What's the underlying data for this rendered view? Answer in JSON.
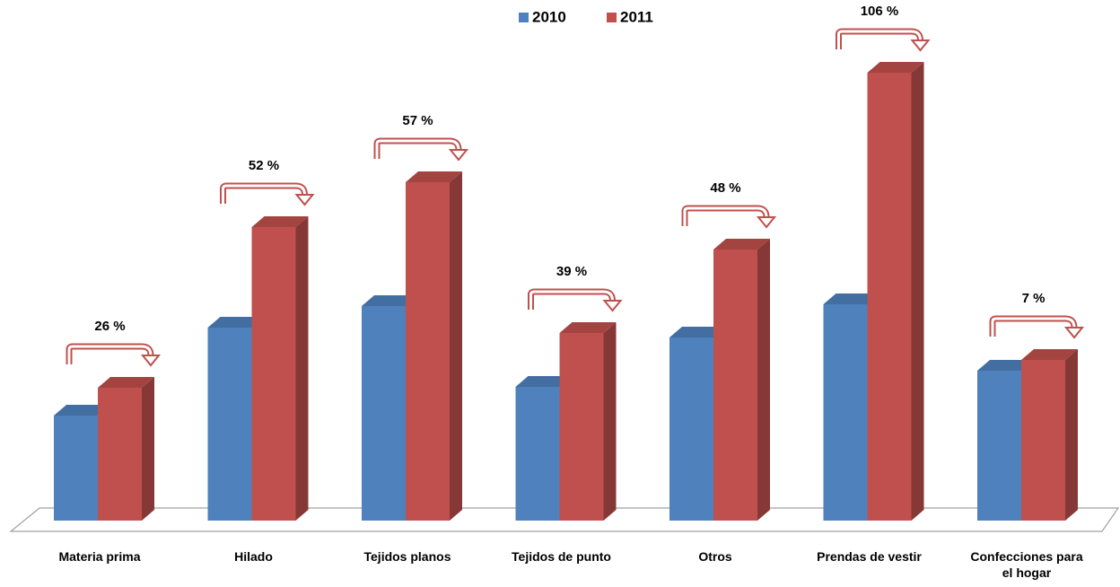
{
  "chart_data": {
    "type": "bar3d",
    "categories": [
      "Materia prima",
      "Hilado",
      "Tejidos planos",
      "Tejidos de punto",
      "Otros",
      "Prendas de vestir",
      "Confecciones para el hogar"
    ],
    "series": [
      {
        "name": "2010",
        "color": "#4f81bd",
        "values": [
          117,
          215,
          239,
          149,
          204,
          241,
          167
        ]
      },
      {
        "name": "2011",
        "color": "#c0504d",
        "values": [
          148,
          327,
          377,
          209,
          302,
          499,
          179
        ]
      }
    ],
    "annotations": [
      "26 %",
      "52 %",
      "57 %",
      "39 %",
      "48 %",
      "106 %",
      "7 %"
    ],
    "legend": "top"
  }
}
